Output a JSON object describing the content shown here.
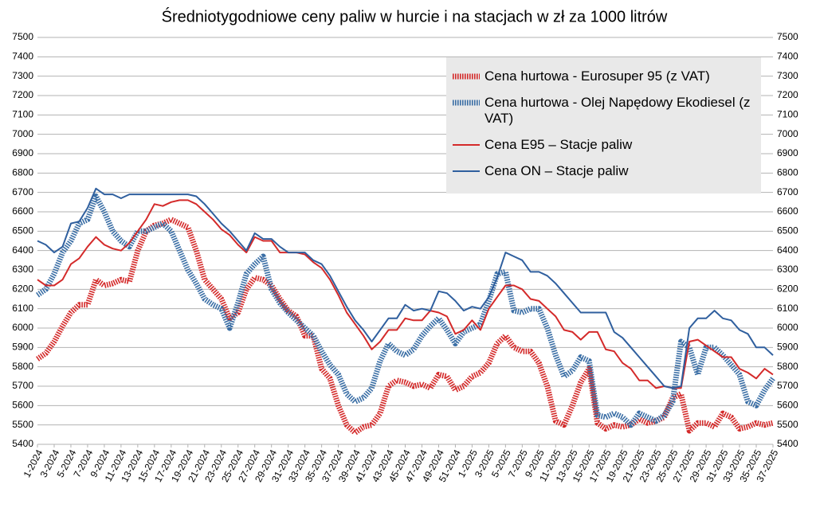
{
  "chart_data": {
    "type": "line",
    "title": "Średniotygodniowe ceny paliw w hurcie i na stacjach w zł za 1000 litrów",
    "categories": [
      "1-2024",
      null,
      "3-2024",
      null,
      "5-2024",
      null,
      "7-2024",
      null,
      "9-2024",
      null,
      "11-2024",
      null,
      "13-2024",
      null,
      "15-2024",
      null,
      "17-2024",
      null,
      "19-2024",
      null,
      "21-2024",
      null,
      "23-2024",
      null,
      "25-2024",
      null,
      "27-2024",
      null,
      "29-2024",
      null,
      "31-2024",
      null,
      "33-2024",
      null,
      "35-2024",
      null,
      "37-2024",
      null,
      "39-2024",
      null,
      "41-2024",
      null,
      "43-2024",
      null,
      "45-2024",
      null,
      "47-2024",
      null,
      "49-2024",
      null,
      "51-2024",
      null,
      "1-2025",
      null,
      "3-2025",
      null,
      "5-2025",
      null,
      "7-2025",
      null,
      "9-2025",
      null,
      "11-2025",
      null,
      "13-2025",
      null,
      "15-2025",
      null,
      "17-2025",
      null,
      "19-2025",
      null,
      "21-2025",
      null,
      "23-2025",
      null,
      "25-2025",
      null,
      "27-2025",
      null,
      "29-2025",
      null,
      "31-2025",
      null,
      "33-2025",
      null,
      "35-2025",
      null,
      "37-2025"
    ],
    "series": [
      {
        "name": "Cena hurtowa  - Eurosuper 95 (z VAT)",
        "color": "#d42a2a",
        "dashed": true,
        "values": [
          5840,
          5870,
          5930,
          6010,
          6080,
          6120,
          6120,
          6250,
          6220,
          6230,
          6250,
          6240,
          6400,
          6500,
          6530,
          6540,
          6560,
          6540,
          6520,
          6400,
          6250,
          6200,
          6150,
          6050,
          6080,
          6200,
          6260,
          6250,
          6220,
          6150,
          6090,
          6060,
          5960,
          5960,
          5790,
          5740,
          5600,
          5500,
          5460,
          5490,
          5500,
          5560,
          5700,
          5730,
          5720,
          5700,
          5710,
          5690,
          5760,
          5750,
          5680,
          5700,
          5750,
          5770,
          5820,
          5920,
          5960,
          5900,
          5880,
          5880,
          5820,
          5700,
          5520,
          5500,
          5600,
          5720,
          5790,
          5510,
          5480,
          5500,
          5490,
          5500,
          5530,
          5510,
          5520,
          5540,
          5640,
          5660,
          5470,
          5510,
          5510,
          5490,
          5560,
          5540,
          5480,
          5490,
          5510,
          5500,
          5510
        ]
      },
      {
        "name": "Cena hurtowa - Olej Napędowy Ekodiesel (z VAT)",
        "color": "#3a6ea5",
        "dashed": true,
        "values": [
          6170,
          6200,
          6280,
          6390,
          6450,
          6540,
          6560,
          6680,
          6600,
          6500,
          6450,
          6420,
          6500,
          6500,
          6520,
          6540,
          6500,
          6400,
          6300,
          6230,
          6150,
          6120,
          6100,
          6000,
          6130,
          6280,
          6330,
          6370,
          6200,
          6130,
          6080,
          6040,
          6000,
          5960,
          5880,
          5810,
          5760,
          5660,
          5620,
          5640,
          5690,
          5830,
          5920,
          5880,
          5860,
          5890,
          5960,
          6010,
          6050,
          5990,
          5920,
          5980,
          6000,
          6020,
          6140,
          6280,
          6290,
          6090,
          6080,
          6100,
          6100,
          6000,
          5860,
          5750,
          5780,
          5850,
          5830,
          5550,
          5540,
          5560,
          5540,
          5500,
          5560,
          5540,
          5520,
          5550,
          5620,
          5930,
          5900,
          5760,
          5900,
          5900,
          5860,
          5810,
          5760,
          5620,
          5600,
          5680,
          5740
        ]
      },
      {
        "name": "Cena E95 – Stacje paliw",
        "color": "#d42a2a",
        "dashed": false,
        "values": [
          6250,
          6220,
          6220,
          6250,
          6330,
          6360,
          6420,
          6470,
          6430,
          6410,
          6400,
          6440,
          6500,
          6560,
          6640,
          6630,
          6650,
          6660,
          6660,
          6640,
          6600,
          6560,
          6510,
          6480,
          6430,
          6390,
          6470,
          6450,
          6450,
          6390,
          6390,
          6390,
          6380,
          6340,
          6310,
          6250,
          6170,
          6080,
          6020,
          5960,
          5890,
          5930,
          5990,
          5990,
          6050,
          6040,
          6040,
          6090,
          6080,
          6060,
          5970,
          5990,
          6040,
          5990,
          6100,
          6160,
          6220,
          6220,
          6200,
          6150,
          6140,
          6100,
          6060,
          5990,
          5980,
          5940,
          5980,
          5980,
          5890,
          5880,
          5820,
          5790,
          5730,
          5730,
          5690,
          5700,
          5690,
          5690,
          5930,
          5940,
          5910,
          5880,
          5850,
          5850,
          5790,
          5770,
          5740,
          5790,
          5760
        ]
      },
      {
        "name": "Cena ON – Stacje paliw",
        "color": "#2f5f9e",
        "dashed": false,
        "values": [
          6450,
          6430,
          6390,
          6420,
          6540,
          6550,
          6620,
          6720,
          6690,
          6690,
          6670,
          6690,
          6690,
          6690,
          6690,
          6690,
          6690,
          6690,
          6690,
          6680,
          6640,
          6590,
          6540,
          6500,
          6450,
          6400,
          6490,
          6460,
          6460,
          6420,
          6390,
          6390,
          6390,
          6350,
          6330,
          6270,
          6190,
          6110,
          6040,
          5990,
          5930,
          5990,
          6050,
          6050,
          6120,
          6090,
          6100,
          6090,
          6190,
          6180,
          6140,
          6090,
          6110,
          6100,
          6160,
          6260,
          6390,
          6370,
          6350,
          6290,
          6290,
          6270,
          6230,
          6180,
          6130,
          6080,
          6080,
          6080,
          6080,
          5980,
          5950,
          5900,
          5850,
          5800,
          5750,
          5700,
          5690,
          5700,
          6000,
          6050,
          6050,
          6090,
          6050,
          6040,
          5990,
          5970,
          5900,
          5900,
          5860
        ]
      }
    ],
    "ylim": [
      5400,
      7500
    ],
    "yticks": [
      5400,
      5500,
      5600,
      5700,
      5800,
      5900,
      6000,
      6100,
      6200,
      6300,
      6400,
      6500,
      6600,
      6700,
      6800,
      6900,
      7000,
      7100,
      7200,
      7300,
      7400,
      7500
    ],
    "y2lim": [
      5400,
      7500
    ],
    "y2ticks": [
      5400,
      5500,
      5600,
      5700,
      5800,
      5900,
      6000,
      6100,
      6200,
      6300,
      6400,
      6500,
      6600,
      6700,
      6800,
      6900,
      7000,
      7100,
      7200,
      7300,
      7400,
      7500
    ],
    "grid": true,
    "legend": "top-right"
  }
}
